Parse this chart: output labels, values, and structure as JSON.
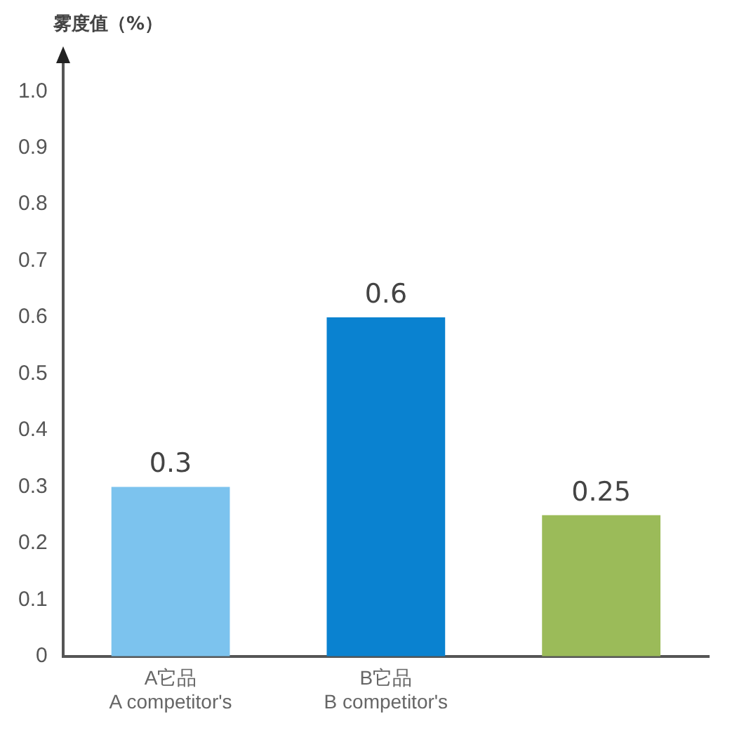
{
  "chart_data": {
    "type": "bar",
    "ylabel": "雾度值（%）",
    "categories": [
      "A它品\nA competitor's",
      "B它品\nB competitor's",
      null
    ],
    "values": [
      0.3,
      0.6,
      0.25
    ],
    "colors": [
      "#7cc3ee",
      "#0a82d0",
      "#9bbb59"
    ],
    "ylim": [
      0,
      1.05
    ],
    "yticks": [
      0,
      0.1,
      0.2,
      0.3,
      0.4,
      0.5,
      0.6,
      0.7,
      0.8,
      0.9,
      {
        "value": 1,
        "label": "1.0"
      }
    ],
    "data_labels": true,
    "grid": false,
    "legend": false
  }
}
